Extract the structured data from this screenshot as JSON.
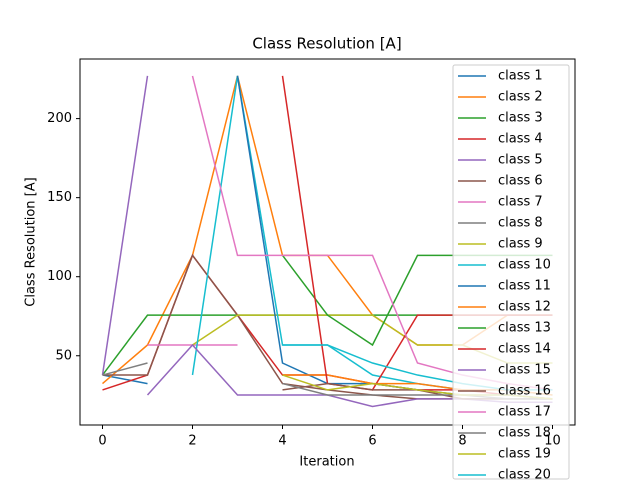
{
  "chart_data": {
    "type": "line",
    "title": "Class Resolution [A]",
    "x_label": "Iteration",
    "y_label": "Class Resolution [A]",
    "x": [
      0,
      1,
      2,
      3,
      4,
      5,
      6,
      7,
      8,
      9,
      10
    ],
    "xlim": [
      -0.5,
      10.5
    ],
    "xticks": [
      0,
      2,
      4,
      6,
      8,
      10
    ],
    "ylim": [
      6.2,
      237.7
    ],
    "yticks": [
      50,
      100,
      150,
      200
    ],
    "legend": "upper right",
    "series": [
      {
        "name": "class 1",
        "color": "#1f77b4",
        "values": [
          37.8,
          32.4,
          null,
          null,
          null,
          null,
          null,
          null,
          null,
          null,
          null
        ]
      },
      {
        "name": "class 2",
        "color": "#ff7f0e",
        "values": [
          32.4,
          56.8,
          113.5,
          227,
          113.5,
          113.5,
          75.7,
          56.8,
          56.8,
          75.7,
          75.7
        ]
      },
      {
        "name": "class 3",
        "color": "#2ca02c",
        "values": [
          37.8,
          75.7,
          75.7,
          75.7,
          75.7,
          75.7,
          75.7,
          75.7,
          75.7,
          75.7,
          75.7
        ]
      },
      {
        "name": "class 4",
        "color": "#d62728",
        "values": [
          28.4,
          37.8,
          113.5,
          75.7,
          37.8,
          37.8,
          32.4,
          28.4,
          28.4,
          25.2,
          22.7
        ]
      },
      {
        "name": "class 5",
        "color": "#9467bd",
        "values": [
          37.8,
          227,
          null,
          null,
          null,
          null,
          null,
          null,
          null,
          null,
          null
        ]
      },
      {
        "name": "class 6",
        "color": "#8c564b",
        "values": [
          37.8,
          37.8,
          113.5,
          75.7,
          32.4,
          28.4,
          25.2,
          22.7,
          22.7,
          22.7,
          22.7
        ]
      },
      {
        "name": "class 7",
        "color": "#e377c2",
        "values": [
          null,
          56.8,
          56.8,
          56.8,
          null,
          null,
          null,
          null,
          null,
          null,
          null
        ]
      },
      {
        "name": "class 8",
        "color": "#7f7f7f",
        "values": [
          37.8,
          45.4,
          null,
          null,
          null,
          null,
          null,
          null,
          null,
          null,
          null
        ]
      },
      {
        "name": "class 9",
        "color": "#bcbd22",
        "values": [
          null,
          null,
          56.8,
          75.7,
          75.7,
          75.7,
          75.7,
          56.8,
          56.8,
          45.4,
          45.4
        ]
      },
      {
        "name": "class 10",
        "color": "#17becf",
        "values": [
          null,
          null,
          37.8,
          227,
          56.8,
          56.8,
          37.8,
          32.4,
          28.4,
          28.4,
          25.2
        ]
      },
      {
        "name": "class 11",
        "color": "#1f77b4",
        "values": [
          null,
          null,
          null,
          227,
          45.4,
          32.4,
          32.4,
          28.4,
          25.2,
          25.2,
          22.7
        ]
      },
      {
        "name": "class 12",
        "color": "#ff7f0e",
        "values": [
          null,
          null,
          null,
          null,
          37.8,
          37.8,
          32.4,
          32.4,
          28.4,
          28.4,
          25.2
        ]
      },
      {
        "name": "class 13",
        "color": "#2ca02c",
        "values": [
          null,
          null,
          null,
          null,
          113.5,
          75.7,
          56.8,
          113.5,
          113.5,
          113.5,
          113.5
        ]
      },
      {
        "name": "class 14",
        "color": "#d62728",
        "values": [
          null,
          null,
          null,
          null,
          227,
          32.4,
          28.4,
          75.7,
          75.7,
          75.7,
          75.7
        ]
      },
      {
        "name": "class 15",
        "color": "#9467bd",
        "values": [
          null,
          25.2,
          56.8,
          25.2,
          25.2,
          25.2,
          17.9,
          22.7,
          22.7,
          20.6,
          20.6
        ]
      },
      {
        "name": "class 16",
        "color": "#8c564b",
        "values": [
          null,
          null,
          null,
          null,
          28.4,
          32.4,
          28.4,
          28.4,
          22.7,
          22.7,
          22.7
        ]
      },
      {
        "name": "class 17",
        "color": "#e377c2",
        "values": [
          null,
          null,
          227,
          113.5,
          113.5,
          113.5,
          113.5,
          45.4,
          37.8,
          32.4,
          28.4
        ]
      },
      {
        "name": "class 18",
        "color": "#7f7f7f",
        "values": [
          null,
          null,
          null,
          null,
          32.4,
          25.2,
          25.2,
          25.2,
          25.2,
          22.7,
          22.7
        ]
      },
      {
        "name": "class 19",
        "color": "#bcbd22",
        "values": [
          null,
          null,
          null,
          null,
          37.8,
          28.4,
          32.4,
          28.4,
          25.2,
          25.2,
          22.7
        ]
      },
      {
        "name": "class 20",
        "color": "#17becf",
        "values": [
          null,
          null,
          null,
          null,
          56.8,
          56.8,
          45.4,
          37.8,
          32.4,
          28.4,
          28.4
        ]
      }
    ]
  }
}
